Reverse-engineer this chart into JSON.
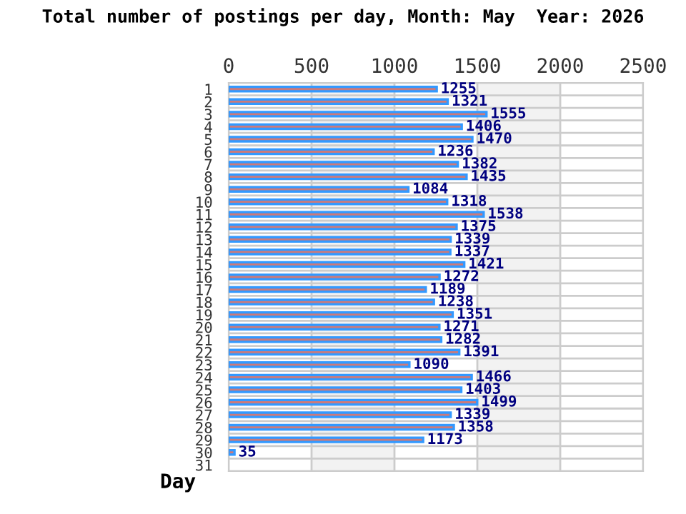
{
  "chart_data": {
    "type": "bar",
    "orientation": "horizontal",
    "title": "Total number of postings per day, Month: May  Year: 2026",
    "ylabel": "Day",
    "categories": [
      "1",
      "2",
      "3",
      "4",
      "5",
      "6",
      "7",
      "8",
      "9",
      "10",
      "11",
      "12",
      "13",
      "14",
      "15",
      "16",
      "17",
      "18",
      "19",
      "20",
      "21",
      "22",
      "23",
      "24",
      "25",
      "26",
      "27",
      "28",
      "29",
      "30",
      "31"
    ],
    "values": [
      1255,
      1321,
      1555,
      1406,
      1470,
      1236,
      1382,
      1435,
      1084,
      1318,
      1538,
      1375,
      1339,
      1337,
      1421,
      1272,
      1189,
      1238,
      1351,
      1271,
      1282,
      1391,
      1090,
      1466,
      1403,
      1499,
      1339,
      1358,
      1173,
      35,
      null
    ],
    "color": "#cc7a7a",
    "data_labels": true,
    "xlim": [
      0,
      2500
    ],
    "xticks": [
      0,
      500,
      1000,
      1500,
      2000,
      2500
    ],
    "grid": true,
    "bands": [
      {
        "axis": "x",
        "from": 500,
        "to": 1000,
        "color": "#f2f2f2"
      },
      {
        "axis": "x",
        "from": 1500,
        "to": 2000,
        "color": "#f2f2f2"
      }
    ]
  }
}
